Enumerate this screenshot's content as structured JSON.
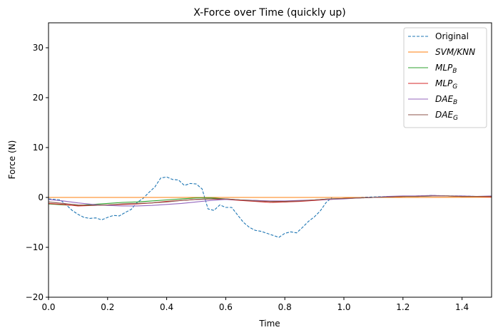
{
  "chart_data": {
    "type": "line",
    "title": "X-Force over Time (quickly  up)",
    "xlabel": "Time",
    "ylabel": "Force (N)",
    "xlim": [
      0.0,
      1.5
    ],
    "ylim": [
      -20,
      35
    ],
    "xticks": [
      "0.0",
      "0.2",
      "0.4",
      "0.6",
      "0.8",
      "1.0",
      "1.2",
      "1.4"
    ],
    "yticks": [
      "−20",
      "−10",
      "0",
      "10",
      "20",
      "30"
    ],
    "grid": false,
    "legend_position": "top-right",
    "series": [
      {
        "name": "Original",
        "sub": "",
        "color": "#1f77b4",
        "dash": "dashed",
        "x": [
          0.0,
          0.04,
          0.06,
          0.08,
          0.1,
          0.12,
          0.14,
          0.16,
          0.18,
          0.2,
          0.22,
          0.24,
          0.26,
          0.28,
          0.3,
          0.32,
          0.34,
          0.36,
          0.38,
          0.4,
          0.42,
          0.44,
          0.46,
          0.48,
          0.5,
          0.52,
          0.54,
          0.56,
          0.58,
          0.6,
          0.62,
          0.64,
          0.66,
          0.68,
          0.7,
          0.72,
          0.74,
          0.76,
          0.78,
          0.8,
          0.82,
          0.84,
          0.86,
          0.88,
          0.9,
          0.92,
          0.94,
          0.96,
          1.0,
          1.05,
          1.1,
          1.15,
          1.2,
          1.25,
          1.3,
          1.35,
          1.4,
          1.45,
          1.5
        ],
        "values": [
          -0.3,
          -0.5,
          -1.5,
          -2.6,
          -3.4,
          -4.0,
          -4.2,
          -4.1,
          -4.5,
          -4.0,
          -3.6,
          -3.7,
          -3.0,
          -2.4,
          -1.0,
          -0.2,
          1.0,
          2.1,
          3.9,
          4.1,
          3.6,
          3.5,
          2.4,
          2.8,
          2.7,
          1.7,
          -2.3,
          -2.6,
          -1.5,
          -2.0,
          -2.0,
          -3.5,
          -5.0,
          -6.0,
          -6.6,
          -6.8,
          -7.2,
          -7.6,
          -8.0,
          -7.2,
          -6.9,
          -7.1,
          -6.0,
          -4.8,
          -3.9,
          -2.7,
          -1.0,
          0.0,
          0.0,
          0.0,
          0.1,
          0.2,
          0.2,
          0.3,
          0.4,
          0.3,
          0.3,
          0.2,
          0.2
        ]
      },
      {
        "name": "SVM/KNN",
        "sub": "",
        "color": "#ff7f0e",
        "dash": "solid",
        "x": [
          0.0,
          0.25,
          0.5,
          0.75,
          1.0,
          1.25,
          1.5
        ],
        "values": [
          0.0,
          0.0,
          0.0,
          0.0,
          0.0,
          0.0,
          0.05
        ]
      },
      {
        "name": "MLP",
        "sub": "B",
        "color": "#2ca02c",
        "dash": "solid",
        "x": [
          0.0,
          0.05,
          0.1,
          0.15,
          0.2,
          0.25,
          0.3,
          0.35,
          0.4,
          0.45,
          0.5,
          0.55,
          0.6,
          0.65,
          0.7,
          0.75,
          0.8,
          0.85,
          0.9,
          0.95,
          1.0,
          1.05,
          1.1,
          1.15,
          1.2,
          1.25,
          1.3,
          1.35,
          1.4,
          1.45,
          1.5
        ],
        "values": [
          -1.3,
          -1.5,
          -1.6,
          -1.4,
          -1.2,
          -1.0,
          -0.9,
          -0.7,
          -0.5,
          -0.3,
          -0.1,
          -0.1,
          -0.3,
          -0.5,
          -0.6,
          -0.8,
          -0.9,
          -0.7,
          -0.5,
          -0.3,
          -0.2,
          -0.1,
          0.0,
          0.1,
          0.2,
          0.2,
          0.3,
          0.3,
          0.2,
          0.2,
          0.2
        ]
      },
      {
        "name": "MLP",
        "sub": "G",
        "color": "#d62728",
        "dash": "solid",
        "x": [
          0.0,
          0.05,
          0.1,
          0.15,
          0.2,
          0.25,
          0.3,
          0.35,
          0.4,
          0.45,
          0.5,
          0.55,
          0.6,
          0.65,
          0.7,
          0.75,
          0.8,
          0.85,
          0.9,
          0.95,
          1.0,
          1.05,
          1.1,
          1.15,
          1.2,
          1.25,
          1.3,
          1.35,
          1.4,
          1.45,
          1.5
        ],
        "values": [
          -1.2,
          -1.4,
          -1.7,
          -1.6,
          -1.5,
          -1.4,
          -1.3,
          -1.1,
          -0.8,
          -0.6,
          -0.4,
          -0.3,
          -0.4,
          -0.6,
          -0.8,
          -1.0,
          -0.9,
          -0.8,
          -0.6,
          -0.4,
          -0.2,
          -0.1,
          0.0,
          0.1,
          0.2,
          0.3,
          0.3,
          0.3,
          0.2,
          0.2,
          0.1
        ]
      },
      {
        "name": "DAE",
        "sub": "B",
        "color": "#9467bd",
        "dash": "solid",
        "x": [
          0.0,
          0.05,
          0.1,
          0.15,
          0.2,
          0.25,
          0.3,
          0.35,
          0.4,
          0.45,
          0.5,
          0.55,
          0.6,
          0.65,
          0.7,
          0.75,
          0.8,
          0.85,
          0.9,
          0.95,
          1.0,
          1.05,
          1.1,
          1.15,
          1.2,
          1.25,
          1.3,
          1.35,
          1.4,
          1.45,
          1.5
        ],
        "values": [
          -0.4,
          -0.7,
          -1.1,
          -1.4,
          -1.6,
          -1.7,
          -1.7,
          -1.6,
          -1.4,
          -1.2,
          -0.9,
          -0.6,
          -0.4,
          -0.5,
          -0.6,
          -0.7,
          -0.7,
          -0.6,
          -0.5,
          -0.4,
          -0.3,
          -0.1,
          0.0,
          0.2,
          0.3,
          0.3,
          0.4,
          0.3,
          0.3,
          0.2,
          0.3
        ]
      },
      {
        "name": "DAE",
        "sub": "G",
        "color": "#8c564b",
        "dash": "solid",
        "x": [
          0.0,
          0.05,
          0.1,
          0.15,
          0.2,
          0.25,
          0.3,
          0.35,
          0.4,
          0.45,
          0.5,
          0.55,
          0.6,
          0.65,
          0.7,
          0.75,
          0.8,
          0.85,
          0.9,
          0.95,
          1.0,
          1.05,
          1.1,
          1.15,
          1.2,
          1.25,
          1.3,
          1.35,
          1.4,
          1.45,
          1.5
        ],
        "values": [
          -0.9,
          -1.2,
          -1.5,
          -1.6,
          -1.5,
          -1.3,
          -1.2,
          -1.1,
          -0.9,
          -0.6,
          -0.4,
          -0.3,
          -0.3,
          -0.5,
          -0.7,
          -0.8,
          -0.8,
          -0.7,
          -0.5,
          -0.3,
          -0.2,
          -0.1,
          0.0,
          0.1,
          0.2,
          0.2,
          0.3,
          0.3,
          0.2,
          0.2,
          0.2
        ]
      }
    ]
  }
}
